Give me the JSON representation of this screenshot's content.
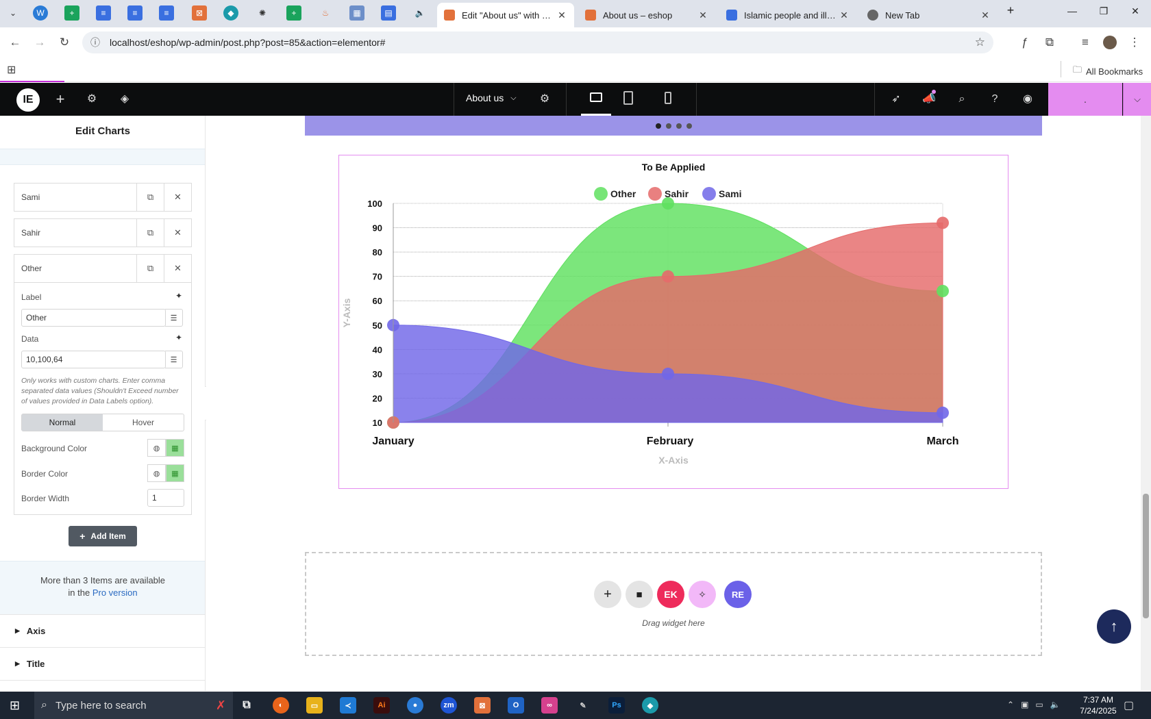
{
  "browser": {
    "tabs": [
      {
        "title": "Edit \"About us\" with Elem",
        "active": true,
        "fav_color": "#e2713b"
      },
      {
        "title": "About us – eshop",
        "active": false,
        "fav_color": "#e2713b"
      },
      {
        "title": "Islamic people and illustra",
        "active": false,
        "fav_color": "#3a6fe0"
      },
      {
        "title": "New Tab",
        "active": false,
        "fav_color": "#666666"
      }
    ],
    "url": "localhost/eshop/wp-admin/post.php?post=85&action=elementor#",
    "bookmarks_label": "All Bookmarks"
  },
  "editor": {
    "page_name": "About us",
    "panel_title": "Edit Charts",
    "items": [
      {
        "label": "Sami"
      },
      {
        "label": "Sahir"
      },
      {
        "label": "Other"
      }
    ],
    "fields": {
      "label_title": "Label",
      "label_value": "Other",
      "data_title": "Data",
      "data_value": "10,100,64",
      "help_text": "Only works with custom charts. Enter comma separated data values (Shouldn't Exceed number of values provided in Data Labels option).",
      "tab_normal": "Normal",
      "tab_hover": "Hover",
      "background_color_label": "Background Color",
      "border_color_label": "Border Color",
      "border_width_label": "Border Width",
      "border_width_value": "1"
    },
    "add_item_label": "Add Item",
    "pro_notice_line1": "More than 3 Items are available",
    "pro_notice_line2": "in the",
    "pro_link": "Pro version",
    "sections": [
      "Axis",
      "Title"
    ],
    "drag_hint": "Drag widget here"
  },
  "chart_data": {
    "type": "area",
    "title": "To Be Applied",
    "xlabel": "X-Axis",
    "ylabel": "Y-Axis",
    "categories": [
      "January",
      "February",
      "March"
    ],
    "ylim": [
      10,
      100
    ],
    "yticks": [
      10,
      20,
      30,
      40,
      50,
      60,
      70,
      80,
      90,
      100
    ],
    "legend_position": "top",
    "series": [
      {
        "name": "Sami",
        "values": [
          50,
          30,
          14
        ],
        "color": "#7067e8"
      },
      {
        "name": "Sahir",
        "values": [
          10,
          70,
          92
        ],
        "color": "#e56a6a"
      },
      {
        "name": "Other",
        "values": [
          10,
          100,
          64
        ],
        "color": "#5fe05f"
      }
    ]
  },
  "taskbar": {
    "search_placeholder": "Type here to search",
    "time": "7:37 AM",
    "date": "7/24/2025"
  },
  "colors": {
    "elementor_bar": "#0c0d0e",
    "publish_button": "#e48cf0",
    "slider_band": "#9b93e8",
    "accent_pink": "#ee2b5b"
  }
}
